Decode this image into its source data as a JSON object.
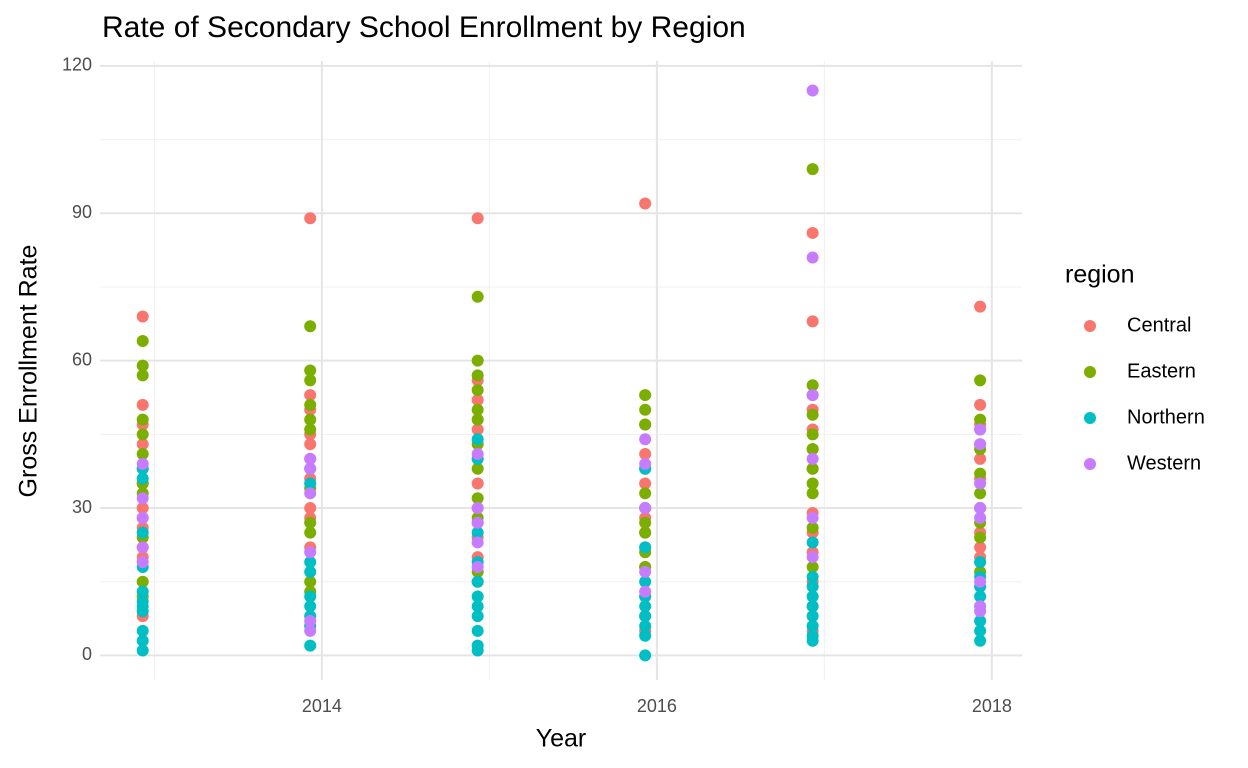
{
  "chart_data": {
    "type": "scatter",
    "title": "Rate of Secondary School Enrollment by Region",
    "x_label": "Year",
    "y_label": "Gross Enrollment Rate",
    "legend_title": "region",
    "legend_position": "right",
    "grid": true,
    "xlim": [
      2012.675,
      2018.18
    ],
    "ylim": [
      -5,
      121
    ],
    "xticks": [
      2014,
      2016,
      2018
    ],
    "yticks": [
      0,
      30,
      60,
      90,
      120
    ],
    "xminor": [
      2013,
      2015,
      2017
    ],
    "yminor": [
      15,
      45,
      75,
      105
    ],
    "series": [
      {
        "name": "Central",
        "color": "#F8766D",
        "x": [
          2012.93,
          2012.93,
          2012.93,
          2012.93,
          2012.93,
          2012.93,
          2012.93,
          2012.93,
          2012.93,
          2012.93,
          2012.93,
          2012.93,
          2013.93,
          2013.93,
          2013.93,
          2013.93,
          2013.93,
          2013.93,
          2013.93,
          2013.93,
          2013.93,
          2013.93,
          2014.93,
          2014.93,
          2014.93,
          2014.93,
          2014.93,
          2014.93,
          2014.93,
          2014.93,
          2014.93,
          2014.93,
          2014.93,
          2015.93,
          2015.93,
          2015.93,
          2015.93,
          2015.93,
          2015.93,
          2015.93,
          2015.93,
          2015.93,
          2015.93,
          2015.93,
          2015.93,
          2016.93,
          2016.93,
          2016.93,
          2016.93,
          2016.93,
          2016.93,
          2016.93,
          2016.93,
          2016.93,
          2016.93,
          2016.93,
          2016.93,
          2017.93,
          2017.93,
          2017.93,
          2017.93,
          2017.93,
          2017.93,
          2017.93,
          2017.93,
          2017.93,
          2017.93
        ],
        "values": [
          69,
          51,
          47,
          43,
          38,
          35,
          30,
          28,
          26,
          22,
          20,
          8,
          89,
          53,
          50,
          45,
          43,
          40,
          36,
          30,
          28,
          22,
          89,
          56,
          52,
          46,
          40,
          35,
          30,
          27,
          24,
          20,
          15,
          92,
          47,
          41,
          35,
          30,
          28,
          25,
          22,
          18,
          12,
          8,
          5,
          86,
          68,
          50,
          46,
          42,
          38,
          29,
          25,
          21,
          15,
          10,
          5,
          71,
          51,
          47,
          43,
          40,
          36,
          30,
          25,
          22,
          20
        ]
      },
      {
        "name": "Eastern",
        "color": "#7CAE00",
        "x": [
          2012.93,
          2012.93,
          2012.93,
          2012.93,
          2012.93,
          2012.93,
          2012.93,
          2012.93,
          2012.93,
          2012.93,
          2012.93,
          2013.93,
          2013.93,
          2013.93,
          2013.93,
          2013.93,
          2013.93,
          2013.93,
          2013.93,
          2013.93,
          2013.93,
          2013.93,
          2014.93,
          2014.93,
          2014.93,
          2014.93,
          2014.93,
          2014.93,
          2014.93,
          2014.93,
          2014.93,
          2014.93,
          2014.93,
          2015.93,
          2015.93,
          2015.93,
          2015.93,
          2015.93,
          2015.93,
          2015.93,
          2015.93,
          2015.93,
          2016.93,
          2016.93,
          2016.93,
          2016.93,
          2016.93,
          2016.93,
          2016.93,
          2016.93,
          2016.93,
          2016.93,
          2016.93,
          2017.93,
          2017.93,
          2017.93,
          2017.93,
          2017.93,
          2017.93,
          2017.93,
          2017.93,
          2017.93,
          2017.93
        ],
        "values": [
          64,
          59,
          57,
          48,
          45,
          41,
          35,
          33,
          24,
          15,
          12,
          67,
          58,
          56,
          51,
          48,
          46,
          34,
          27,
          25,
          15,
          13,
          73,
          60,
          57,
          54,
          50,
          48,
          43,
          38,
          32,
          28,
          17,
          53,
          50,
          47,
          38,
          33,
          27,
          25,
          21,
          18,
          99,
          55,
          53,
          49,
          45,
          42,
          38,
          35,
          33,
          26,
          18,
          56,
          48,
          46,
          42,
          37,
          33,
          30,
          27,
          24,
          17
        ]
      },
      {
        "name": "Northern",
        "color": "#00BFC4",
        "x": [
          2012.93,
          2012.93,
          2012.93,
          2012.93,
          2012.93,
          2012.93,
          2012.93,
          2012.93,
          2012.93,
          2012.93,
          2012.93,
          2013.93,
          2013.93,
          2013.93,
          2013.93,
          2013.93,
          2013.93,
          2013.93,
          2013.93,
          2013.93,
          2014.93,
          2014.93,
          2014.93,
          2014.93,
          2014.93,
          2014.93,
          2014.93,
          2014.93,
          2014.93,
          2014.93,
          2014.93,
          2015.93,
          2015.93,
          2015.93,
          2015.93,
          2015.93,
          2015.93,
          2015.93,
          2015.93,
          2015.93,
          2015.93,
          2016.93,
          2016.93,
          2016.93,
          2016.93,
          2016.93,
          2016.93,
          2016.93,
          2016.93,
          2016.93,
          2017.93,
          2017.93,
          2017.93,
          2017.93,
          2017.93,
          2017.93,
          2017.93,
          2017.93
        ],
        "values": [
          38,
          36,
          25,
          18,
          13,
          11,
          10,
          9,
          5,
          3,
          1,
          38,
          35,
          19,
          17,
          12,
          10,
          8,
          6,
          2,
          44,
          40,
          25,
          19,
          15,
          12,
          10,
          8,
          5,
          2,
          1,
          38,
          30,
          22,
          15,
          12,
          10,
          8,
          6,
          4,
          0,
          23,
          16,
          14,
          12,
          10,
          8,
          6,
          4,
          3,
          19,
          16,
          14,
          12,
          10,
          7,
          5,
          3
        ]
      },
      {
        "name": "Western",
        "color": "#C77CFF",
        "x": [
          2012.93,
          2012.93,
          2012.93,
          2012.93,
          2012.93,
          2013.93,
          2013.93,
          2013.93,
          2013.93,
          2013.93,
          2013.93,
          2014.93,
          2014.93,
          2014.93,
          2014.93,
          2014.93,
          2015.93,
          2015.93,
          2015.93,
          2015.93,
          2015.93,
          2016.93,
          2016.93,
          2016.93,
          2016.93,
          2016.93,
          2016.93,
          2017.93,
          2017.93,
          2017.93,
          2017.93,
          2017.93,
          2017.93,
          2017.93,
          2017.93
        ],
        "values": [
          39,
          32,
          28,
          22,
          19,
          40,
          38,
          33,
          21,
          7,
          5,
          41,
          30,
          27,
          23,
          18,
          44,
          39,
          30,
          17,
          13,
          115,
          81,
          53,
          40,
          28,
          20,
          46,
          43,
          35,
          30,
          28,
          15,
          10,
          9
        ]
      }
    ]
  }
}
